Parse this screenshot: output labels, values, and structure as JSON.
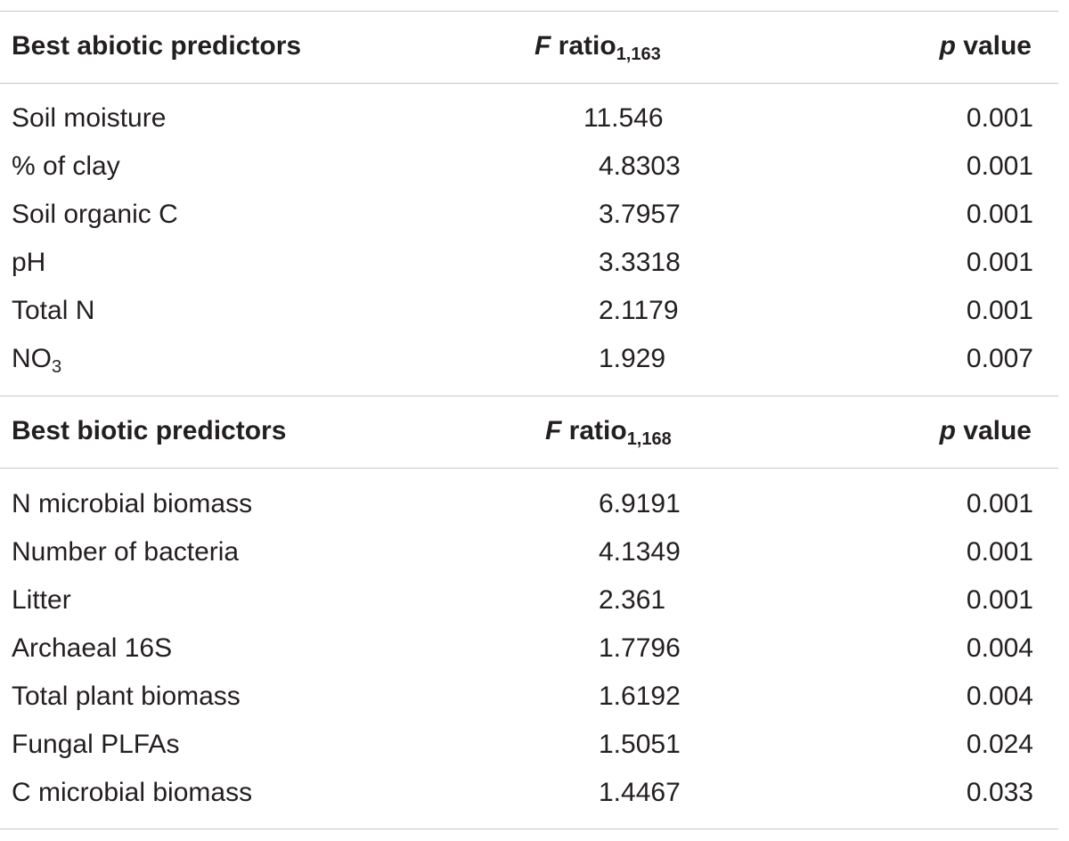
{
  "sections": [
    {
      "header": {
        "predictor_label": "Best abiotic predictors",
        "f_italic": "F",
        "f_word": "ratio",
        "f_sub": "1,163",
        "p_italic": "p",
        "p_word": "value"
      },
      "rows": [
        {
          "name": "Soil moisture",
          "f": "11.546",
          "p": "0.001"
        },
        {
          "name": "% of clay",
          "f": "4.8303",
          "p": "0.001"
        },
        {
          "name": "Soil organic C",
          "f": "3.7957",
          "p": "0.001"
        },
        {
          "name": "pH",
          "f": "3.3318",
          "p": "0.001"
        },
        {
          "name": "Total N",
          "f": "2.1179",
          "p": "0.001"
        },
        {
          "name_main": "NO",
          "name_sub": "3",
          "f": "1.929",
          "p": "0.007"
        }
      ]
    },
    {
      "header": {
        "predictor_label": "Best biotic predictors",
        "f_italic": "F",
        "f_word": "ratio",
        "f_sub": "1,168",
        "p_italic": "p",
        "p_word": "value"
      },
      "rows": [
        {
          "name": "N microbial biomass",
          "f": "6.9191",
          "p": "0.001"
        },
        {
          "name": "Number of bacteria",
          "f": "4.1349",
          "p": "0.001"
        },
        {
          "name": "Litter",
          "f": "2.361",
          "p": "0.001"
        },
        {
          "name": "Archaeal 16S",
          "f": "1.7796",
          "p": "0.004"
        },
        {
          "name": "Total plant biomass",
          "f": "1.6192",
          "p": "0.004"
        },
        {
          "name": "Fungal PLFAs",
          "f": "1.5051",
          "p": "0.024"
        },
        {
          "name": "C microbial biomass",
          "f": "1.4467",
          "p": "0.033"
        }
      ]
    }
  ]
}
